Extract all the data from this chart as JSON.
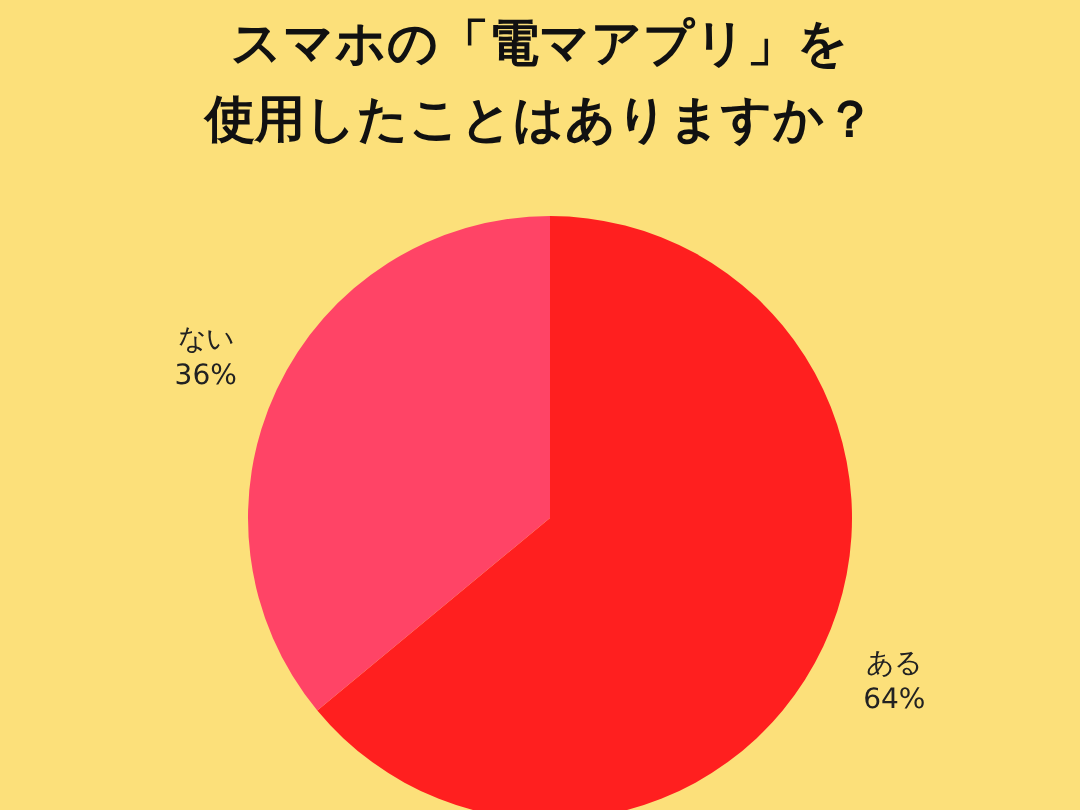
{
  "chart_data": {
    "type": "pie",
    "title": "スマホの「電マアプリ」を",
    "subtitle": "使用したことはありますか？",
    "categories": [
      "ある",
      "ない"
    ],
    "values": [
      64,
      36
    ],
    "value_labels": [
      "64%",
      "36%"
    ],
    "colors": [
      "#ff1f1f",
      "#ff4466"
    ]
  }
}
